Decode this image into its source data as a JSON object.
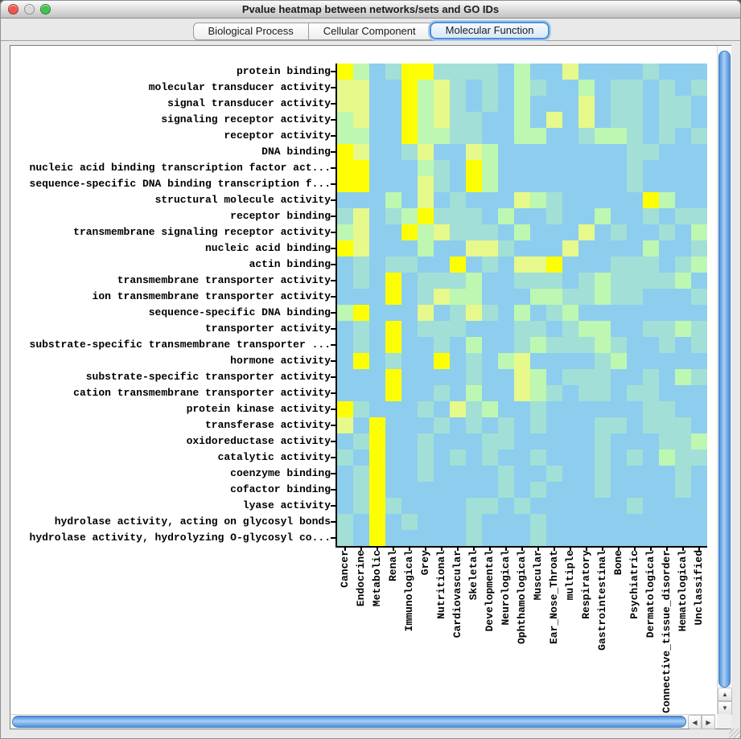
{
  "window": {
    "title": "Pvalue heatmap between networks/sets and GO IDs",
    "traffic_lights": [
      {
        "name": "close-button",
        "color": "#F0564D"
      },
      {
        "name": "minimize-button",
        "color": "#D9D9D9"
      },
      {
        "name": "zoom-button",
        "color": "#43C24E"
      }
    ]
  },
  "tabs": [
    {
      "label": "Biological Process",
      "selected": false
    },
    {
      "label": "Cellular Component",
      "selected": false
    },
    {
      "label": "Molecular Function",
      "selected": true
    }
  ],
  "scrollbar_icons": {
    "up": "▲",
    "down": "▼",
    "left": "◀",
    "right": "▶"
  },
  "chart_data": {
    "type": "heatmap",
    "title": "Pvalue heatmap between networks/sets and GO IDs",
    "rows": [
      "protein binding",
      "molecular transducer activity",
      "signal transducer activity",
      "signaling receptor activity",
      "receptor activity",
      "DNA binding",
      "nucleic acid binding transcription factor act...",
      "sequence-specific DNA binding transcription f...",
      "structural molecule activity",
      "receptor binding",
      "transmembrane signaling receptor activity",
      "nucleic acid binding",
      "actin binding",
      "transmembrane transporter activity",
      "ion transmembrane transporter activity",
      "sequence-specific DNA binding",
      "transporter activity",
      "substrate-specific transmembrane transporter ...",
      "hormone activity",
      "substrate-specific transporter activity",
      "cation transmembrane transporter activity",
      "protein kinase activity",
      "transferase activity",
      "oxidoreductase activity",
      "catalytic activity",
      "coenzyme binding",
      "cofactor binding",
      "lyase activity",
      "hydrolase activity, acting on glycosyl bonds",
      "hydrolase activity, hydrolyzing O-glycosyl co..."
    ],
    "columns": [
      "Cancer",
      "Endocrine",
      "Metabolic",
      "Renal",
      "Immunological",
      "Grey",
      "Nutritional",
      "Cardiovascular",
      "Skeletal",
      "Developmental",
      "Neurological",
      "Ophthamological",
      "Muscular",
      "Ear_Nose_Throat",
      "multiple",
      "Respiratory",
      "Gastrointestinal",
      "Bone",
      "Psychiatric",
      "Dermatological",
      "Connective_tissue_disorder",
      "Hematological",
      "Unclassified"
    ],
    "palette": {
      "b": "#8DCEEE",
      "t": "#A2DFD6",
      "g": "#BDF7B2",
      "p": "#E6F98A",
      "y": "#FDFE04"
    },
    "palette_legend": "b=blue(high p) t=teal g=green p=pale yellow-green y=yellow(low p)",
    "cells": [
      "ygbtyyttttbgbbpbbbbtbbb",
      "ppbbygptbtbgtbbgbttbtbt",
      "ppbbygptbtbgbbbpbttbttb",
      "gpbbygpttbbgbpbpbttbttb",
      "ggbbyggttbbggbbtggtbtbt",
      "ypbbtpbbpgbbbbbbbbttbbb",
      "yybbbgtbygbbbbbbbbtbbbb",
      "yybbbptbygbbbbbbbbtbbbb",
      "bbbgbpbtbbbpgtbbbbbygbb",
      "tpbtgytttbgbbtbbgbbtbtt",
      "gpbbygptttbgbbbpbtbbtbg",
      "ypbbbgbbpptbbbpbbbbgbbt",
      "btbttbbybtbppybbbtttbtg",
      "btbybtttgbbtttbtgttttgb",
      "bbbybtpggbbbggttgttbbbt",
      "gybbbpbtptbgbtgbbbbbbbb",
      "btbybtttbbbttbtggbbttgt",
      "btbybbtbgbbtgtttgtbbtbt",
      "bybtbbybtbgpbbbbtgbbbbb",
      "bbbybbbbtbbpgbtttbbtbgt",
      "bbbybbtbgbbpgtbttbttbbb",
      "ytbbbtbptgbbtbbbbbbttbb",
      "pbybbbtbtbtbtbbbttbtttb",
      "btybbtbbbttbbbbbtbbbttg",
      "tbybbtbtbtbbtbbbtbtbgtt",
      "btybbtbbbbtbbtbbtbbbbtb",
      "btybbbbbbbtbtbbbtbbbbtb",
      "btytbbbbttbtbbbbbbtbbbb",
      "tbybtbbbtbbbtbbbbbbbbbb",
      "tbybbbbbtbbbtbbbbbbbbbb"
    ]
  }
}
